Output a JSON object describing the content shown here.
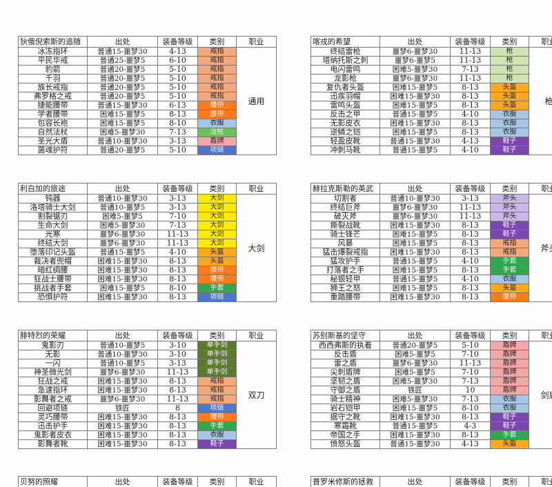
{
  "headers": {
    "source": "出处",
    "level": "装备等级",
    "type": "类别",
    "job": "职业"
  },
  "colors": {
    "戒指": "#f3a97c",
    "腰带": "#ff7a1a",
    "衣服": "#a7c6e4",
    "法杖": "#6ec05a",
    "盾牌": "#f3a6a6",
    "项链": "#4f77c8",
    "枪": "#cfe3b3",
    "头盔": "#ffa81a",
    "鞋子": "#7a47b0",
    "大剑": "#ffea00",
    "手套": "#2fa84f",
    "斧头": "#c9b7e7",
    "单手剑": "#5b7a2a"
  },
  "tables": [
    {
      "title": "狄俄倪索斯的追随",
      "job": "通用",
      "rows": [
        {
          "name": "冰冻指环",
          "source": "普通15-噩梦30",
          "level": "4-13",
          "type": "戒指"
        },
        {
          "name": "平民华戒",
          "source": "普通25-噩梦5",
          "level": "6-10",
          "type": "戒指"
        },
        {
          "name": "豹箭",
          "source": "普通20-噩梦5",
          "level": "5-10",
          "type": "戒指"
        },
        {
          "name": "千羽",
          "source": "普通20-噩梦5",
          "level": "5-10",
          "type": "戒指"
        },
        {
          "name": "族长戒指",
          "source": "普通20-噩梦5",
          "level": "5-10",
          "type": "戒指"
        },
        {
          "name": "弗罗格之戒",
          "source": "普通20-噩梦5",
          "level": "5-10",
          "type": "戒指"
        },
        {
          "name": "捷能腰带",
          "source": "普通15-噩梦30",
          "level": "6-13",
          "type": "腰带"
        },
        {
          "name": "学者腰带",
          "source": "困难15-噩梦5",
          "level": "8-13",
          "type": "腰带"
        },
        {
          "name": "包容长袍",
          "source": "困难15-噩梦5",
          "level": "8-10",
          "type": "衣服"
        },
        {
          "name": "自然法杖",
          "source": "困难5-噩梦30",
          "level": "7-13",
          "type": "法杖"
        },
        {
          "name": "圣光大盾",
          "source": "普通10-噩梦30",
          "level": "3-13",
          "type": "盾牌"
        },
        {
          "name": "菌魂护符",
          "source": "普通20-噩梦5",
          "level": "5-10",
          "type": "项链"
        }
      ]
    },
    {
      "title": "喀戎的希望",
      "job": "枪",
      "rows": [
        {
          "name": "终结雷枪",
          "source": "噩梦6-噩梦30",
          "level": "11-13",
          "type": "枪"
        },
        {
          "name": "塔纳托斯之刺",
          "source": "噩梦6-噩梦5",
          "level": "11-13",
          "type": "枪"
        },
        {
          "name": "电闪雷鸣",
          "source": "困难5-噩梦30",
          "level": "7-13",
          "type": "枪"
        },
        {
          "name": "龙影枪",
          "source": "噩梦6-噩梦30",
          "level": "11-13",
          "type": "枪"
        },
        {
          "name": "复仇者头盔",
          "source": "困难15-噩梦5",
          "level": "8-13",
          "type": "头盔"
        },
        {
          "name": "迅疾羽帽",
          "source": "困难15-噩梦30",
          "level": "8-13",
          "type": "头盔"
        },
        {
          "name": "雷鸣头盔",
          "source": "困难15-噩梦5",
          "level": "8-13",
          "type": "头盔"
        },
        {
          "name": "反击之甲",
          "source": "普通15-噩梦5",
          "level": "4-10",
          "type": "衣服"
        },
        {
          "name": "无影皮衣",
          "source": "困难15-噩梦30",
          "level": "8-13",
          "type": "衣服"
        },
        {
          "name": "逆鳞之铠",
          "source": "困难15-噩梦5",
          "level": "8-13",
          "type": "衣服"
        },
        {
          "name": "轻盈皮靴",
          "source": "普通15-噩梦30",
          "level": "4-13",
          "type": "鞋子"
        },
        {
          "name": "冲刺马靴",
          "source": "普通15-噩梦5",
          "level": "4-10",
          "type": "鞋子"
        }
      ]
    },
    {
      "title": "利白加的旅途",
      "job": "大剑",
      "rows": [
        {
          "name": "钝器",
          "source": "普通10-噩梦30",
          "level": "3-13",
          "type": "大剑"
        },
        {
          "name": "洛塔骑士大剑",
          "source": "普通10-噩梦5",
          "level": "3-13",
          "type": "大剑"
        },
        {
          "name": "割裂锯刃",
          "source": "困难5-噩梦5",
          "level": "7-10",
          "type": "大剑"
        },
        {
          "name": "生命大剑",
          "source": "困难5-噩梦30",
          "level": "7-13",
          "type": "大剑"
        },
        {
          "name": "光寒",
          "source": "噩梦6-噩梦30",
          "level": "11-13",
          "type": "大剑"
        },
        {
          "name": "终结大剑",
          "source": "噩梦6-噩梦30",
          "level": "11-13",
          "type": "大剑"
        },
        {
          "name": "堕落印记头盔",
          "source": "普通15-噩梦5",
          "level": "4-10",
          "type": "头盔"
        },
        {
          "name": "裁决者兜帽",
          "source": "困难15-噩梦30",
          "level": "8-13",
          "type": "头盔"
        },
        {
          "name": "暗红绸腰",
          "source": "困难15-噩梦30",
          "level": "8-13",
          "type": "腰带"
        },
        {
          "name": "狂战士腰带",
          "source": "困难15-噩梦30",
          "level": "8-13",
          "type": "腰带"
        },
        {
          "name": "挑战者手套",
          "source": "困难15-噩梦5",
          "level": "8-10",
          "type": "手套"
        },
        {
          "name": "恐惧护符",
          "source": "困难15-噩梦30",
          "level": "8-13",
          "type": "项链"
        }
      ]
    },
    {
      "title": "赫拉克斯勒的英武",
      "job": "斧头",
      "rows": [
        {
          "name": "切割者",
          "source": "普通10-噩梦30",
          "level": "3-13",
          "type": "斧头"
        },
        {
          "name": "终结巨斧",
          "source": "噩梦6-噩梦30",
          "level": "11-13",
          "type": "斧头"
        },
        {
          "name": "破灭斧",
          "source": "噩梦6-噩梦30",
          "level": "11-13",
          "type": "斧头"
        },
        {
          "name": "撕裂战靴",
          "source": "困难15-噩梦30",
          "level": "8-13",
          "type": "鞋子"
        },
        {
          "name": "骑士锋芒",
          "source": "困难15-噩梦5",
          "level": "8-13",
          "type": "鞋子"
        },
        {
          "name": "风暴",
          "source": "困难15-噩梦5",
          "level": "8-13",
          "type": "戒指"
        },
        {
          "name": "猛击爆裂戒指",
          "source": "困难15-噩梦30",
          "level": "8-13",
          "type": "戒指"
        },
        {
          "name": "猛攻护手",
          "source": "普通15-噩梦5",
          "level": "4-10",
          "type": "手套"
        },
        {
          "name": "打落者之手",
          "source": "困难15-噩梦5",
          "level": "8-13",
          "type": "手套"
        },
        {
          "name": "秘银轻甲",
          "source": "普通15-噩梦5",
          "level": "4-10",
          "type": "衣服"
        },
        {
          "name": "狮王之怒",
          "source": "困难15-噩梦5",
          "level": "8-13",
          "type": "头盔"
        },
        {
          "name": "重踏腰带",
          "source": "困难15-噩梦30",
          "level": "8-13",
          "type": "腰带"
        }
      ]
    },
    {
      "title": "腓特烈的荣耀",
      "job": "双刀",
      "rows": [
        {
          "name": "鬼影刃",
          "source": "普通10-噩梦5",
          "level": "3-10",
          "type": "单手剑"
        },
        {
          "name": "无影",
          "source": "普通10-噩梦30",
          "level": "3-10",
          "type": "单手剑"
        },
        {
          "name": "一闪",
          "source": "普通10-噩梦5",
          "level": "3-13",
          "type": "单手剑"
        },
        {
          "name": "神圣微光剑",
          "source": "噩梦6-噩梦30",
          "level": "11-13",
          "type": "单手剑"
        },
        {
          "name": "狂战之戒",
          "source": "困难15-噩梦30",
          "level": "8-13",
          "type": "戒指"
        },
        {
          "name": "急速指环",
          "source": "困难15-噩梦30",
          "level": "8-13",
          "type": "戒指"
        },
        {
          "name": "影舞者之戒",
          "source": "噩梦6-噩梦30",
          "level": "11-13",
          "type": "戒指"
        },
        {
          "name": "回避项链",
          "source": "铁匠",
          "level": "8",
          "type": "项链"
        },
        {
          "name": "灵巧腰带",
          "source": "困难15-噩梦30",
          "level": "8-13",
          "type": "腰带"
        },
        {
          "name": "迅击护手",
          "source": "困难15-噩梦30",
          "level": "8-13",
          "type": "手套"
        },
        {
          "name": "鬼影者皮衣",
          "source": "困难15-噩梦30",
          "level": "8-13",
          "type": "衣服"
        },
        {
          "name": "影舞者靴",
          "source": "困难15-噩梦30",
          "level": "8-13",
          "type": "鞋子"
        }
      ]
    },
    {
      "title": "苏别斯基的坚守",
      "job": "剑盾",
      "rows": [
        {
          "name": "西西弗斯的执着",
          "source": "普通20-噩梦5",
          "level": "5-10",
          "type": "盾牌"
        },
        {
          "name": "反击盾",
          "source": "困难5-噩梦5",
          "level": "7-10",
          "type": "盾牌"
        },
        {
          "name": "雷之盾",
          "source": "噩梦6-噩梦30",
          "level": "11-13",
          "type": "盾牌"
        },
        {
          "name": "尖刺盾牌",
          "source": "困难5-噩梦5",
          "level": "7-10",
          "type": "盾牌"
        },
        {
          "name": "坚韧之盾",
          "source": "困难5-噩梦30",
          "level": "7-13",
          "type": "盾牌"
        },
        {
          "name": "守御之盾",
          "source": "铁匠",
          "level": "10",
          "type": "盾牌"
        },
        {
          "name": "骑士精神",
          "source": "困难5-噩梦30",
          "level": "7-13",
          "type": "衣服"
        },
        {
          "name": "岩石铠甲",
          "source": "困难15-噩梦5",
          "level": "8-10",
          "type": "衣服"
        },
        {
          "name": "据守之靴",
          "source": "困难15-噩梦30",
          "level": "8-13",
          "type": "鞋子"
        },
        {
          "name": "寒霜靴",
          "source": "普通15-噩梦5",
          "level": "4-3",
          "type": "鞋子"
        },
        {
          "name": "帝国之手",
          "source": "困难15-噩梦30",
          "level": "8-13",
          "type": "手套"
        },
        {
          "name": "愤怒头盔",
          "source": "普通15-噩梦30",
          "level": "4-13",
          "type": "头盔"
        }
      ]
    }
  ],
  "partial_tables": [
    {
      "title": "贝努的照耀"
    },
    {
      "title": "普罗米修斯的拯救"
    }
  ]
}
